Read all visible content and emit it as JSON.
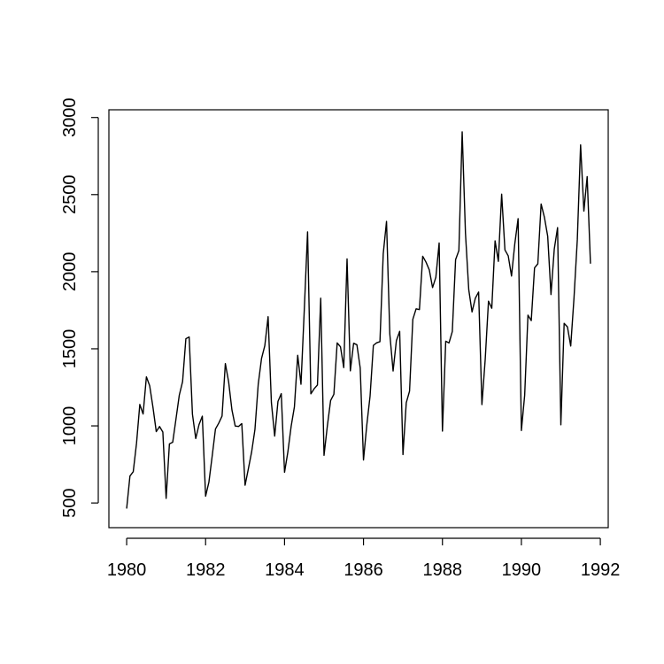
{
  "chart_data": {
    "type": "line",
    "title": "",
    "xlabel": "",
    "ylabel": "",
    "xlim": [
      1979.55,
      1992.2
    ],
    "ylim": [
      340,
      3050
    ],
    "xticks": [
      1980,
      1982,
      1984,
      1986,
      1988,
      1990,
      1992
    ],
    "yticks": [
      500,
      1000,
      1500,
      2000,
      2500,
      3000
    ],
    "grid": false,
    "legend": "none",
    "series": [
      {
        "start": 1980,
        "frequency": 12,
        "values": [
          464,
          675,
          703,
          887,
          1139,
          1077,
          1318,
          1260,
          1120,
          963,
          996,
          960,
          530,
          883,
          894,
          1045,
          1199,
          1287,
          1565,
          1577,
          1076,
          918,
          1008,
          1063,
          544,
          635,
          804,
          980,
          1018,
          1064,
          1404,
          1286,
          1104,
          999,
          996,
          1015,
          615,
          722,
          832,
          977,
          1270,
          1437,
          1520,
          1708,
          1151,
          934,
          1159,
          1209,
          699,
          830,
          996,
          1124,
          1458,
          1270,
          1753,
          2258,
          1208,
          1241,
          1265,
          1828,
          809,
          997,
          1164,
          1205,
          1538,
          1513,
          1378,
          2083,
          1357,
          1536,
          1526,
          1376,
          779,
          1005,
          1193,
          1522,
          1539,
          1546,
          2116,
          2326,
          1596,
          1356,
          1553,
          1613,
          814,
          1150,
          1225,
          1691,
          1759,
          1754,
          2100,
          2062,
          2012,
          1897,
          1964,
          2186,
          966,
          1549,
          1538,
          1612,
          2078,
          2137,
          2907,
          2249,
          1883,
          1739,
          1828,
          1868,
          1138,
          1430,
          1809,
          1763,
          2200,
          2067,
          2503,
          2141,
          2103,
          1972,
          2181,
          2344,
          970,
          1199,
          1718,
          1683,
          2025,
          2051,
          2439,
          2353,
          2230,
          1852,
          2147,
          2286,
          1007,
          1665,
          1642,
          1518,
          1831,
          2207,
          2822,
          2393,
          2617,
          2052
        ]
      }
    ]
  }
}
